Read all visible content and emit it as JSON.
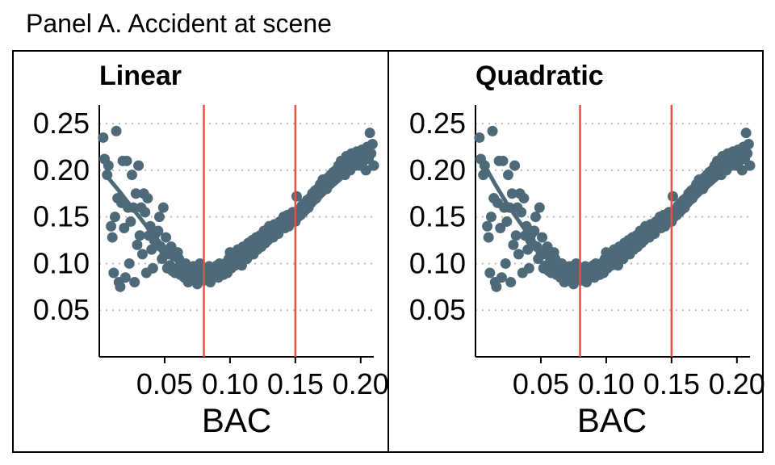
{
  "title": "Panel A. Accident at scene",
  "colors": {
    "points": "#4e6a78",
    "fit_line": "#4e6a78",
    "cutoff_line": "#e8503f",
    "grid": "#bbbbbb"
  },
  "chart_data": [
    {
      "type": "scatter",
      "facet_title": "Linear",
      "fit": "linear",
      "xlabel": "BAC",
      "ylabel": "",
      "xlim": [
        0,
        0.21
      ],
      "ylim": [
        0,
        0.27
      ],
      "x_ticks": [
        "0.05",
        "0.10",
        "0.15",
        "0.20"
      ],
      "y_ticks": [
        "0.05",
        "0.10",
        "0.15",
        "0.20",
        "0.25"
      ],
      "grid": "horizontal dotted",
      "cutoffs": [
        0.08,
        0.15
      ],
      "points": [
        [
          0.003,
          0.235
        ],
        [
          0.004,
          0.212
        ],
        [
          0.006,
          0.195
        ],
        [
          0.007,
          0.205
        ],
        [
          0.009,
          0.14
        ],
        [
          0.01,
          0.128
        ],
        [
          0.011,
          0.09
        ],
        [
          0.012,
          0.15
        ],
        [
          0.013,
          0.242
        ],
        [
          0.014,
          0.17
        ],
        [
          0.015,
          0.08
        ],
        [
          0.016,
          0.075
        ],
        [
          0.017,
          0.165
        ],
        [
          0.018,
          0.21
        ],
        [
          0.019,
          0.138
        ],
        [
          0.02,
          0.085
        ],
        [
          0.021,
          0.21
        ],
        [
          0.022,
          0.16
        ],
        [
          0.023,
          0.1
        ],
        [
          0.024,
          0.145
        ],
        [
          0.025,
          0.195
        ],
        [
          0.026,
          0.16
        ],
        [
          0.027,
          0.08
        ],
        [
          0.028,
          0.175
        ],
        [
          0.029,
          0.12
        ],
        [
          0.03,
          0.205
        ],
        [
          0.031,
          0.13
        ],
        [
          0.032,
          0.16
        ],
        [
          0.033,
          0.11
        ],
        [
          0.034,
          0.175
        ],
        [
          0.035,
          0.155
        ],
        [
          0.036,
          0.09
        ],
        [
          0.037,
          0.17
        ],
        [
          0.038,
          0.13
        ],
        [
          0.039,
          0.14
        ],
        [
          0.04,
          0.115
        ],
        [
          0.041,
          0.095
        ],
        [
          0.042,
          0.125
        ],
        [
          0.043,
          0.132
        ],
        [
          0.044,
          0.12
        ],
        [
          0.045,
          0.135
        ],
        [
          0.046,
          0.15
        ],
        [
          0.047,
          0.118
        ],
        [
          0.048,
          0.105
        ],
        [
          0.049,
          0.16
        ],
        [
          0.05,
          0.112
        ],
        [
          0.051,
          0.128
        ],
        [
          0.052,
          0.095
        ],
        [
          0.053,
          0.11
        ],
        [
          0.054,
          0.098
        ],
        [
          0.055,
          0.118
        ],
        [
          0.056,
          0.092
        ],
        [
          0.057,
          0.108
        ],
        [
          0.058,
          0.09
        ],
        [
          0.059,
          0.095
        ],
        [
          0.06,
          0.112
        ],
        [
          0.061,
          0.105
        ],
        [
          0.062,
          0.088
        ],
        [
          0.063,
          0.098
        ],
        [
          0.064,
          0.094
        ],
        [
          0.065,
          0.085
        ],
        [
          0.066,
          0.1
        ],
        [
          0.067,
          0.09
        ],
        [
          0.068,
          0.08
        ],
        [
          0.069,
          0.095
        ],
        [
          0.07,
          0.088
        ],
        [
          0.071,
          0.082
        ],
        [
          0.072,
          0.097
        ],
        [
          0.073,
          0.086
        ],
        [
          0.074,
          0.092
        ],
        [
          0.075,
          0.078
        ],
        [
          0.076,
          0.09
        ],
        [
          0.077,
          0.1
        ],
        [
          0.078,
          0.085
        ],
        [
          0.079,
          0.088
        ],
        [
          0.08,
          0.095
        ],
        [
          0.081,
          0.082
        ],
        [
          0.082,
          0.092
        ],
        [
          0.083,
          0.088
        ],
        [
          0.084,
          0.097
        ],
        [
          0.085,
          0.08
        ],
        [
          0.086,
          0.092
        ],
        [
          0.087,
          0.086
        ],
        [
          0.088,
          0.094
        ],
        [
          0.089,
          0.09
        ],
        [
          0.09,
          0.098
        ],
        [
          0.091,
          0.085
        ],
        [
          0.092,
          0.1
        ],
        [
          0.093,
          0.092
        ],
        [
          0.094,
          0.096
        ],
        [
          0.095,
          0.088
        ],
        [
          0.096,
          0.1
        ],
        [
          0.097,
          0.094
        ],
        [
          0.098,
          0.09
        ],
        [
          0.099,
          0.105
        ],
        [
          0.1,
          0.112
        ],
        [
          0.101,
          0.095
        ],
        [
          0.102,
          0.1
        ],
        [
          0.103,
          0.108
        ],
        [
          0.104,
          0.098
        ],
        [
          0.105,
          0.104
        ],
        [
          0.106,
          0.115
        ],
        [
          0.107,
          0.1
        ],
        [
          0.108,
          0.11
        ],
        [
          0.109,
          0.098
        ],
        [
          0.11,
          0.118
        ],
        [
          0.111,
          0.108
        ],
        [
          0.112,
          0.115
        ],
        [
          0.113,
          0.105
        ],
        [
          0.114,
          0.122
        ],
        [
          0.115,
          0.11
        ],
        [
          0.116,
          0.118
        ],
        [
          0.117,
          0.125
        ],
        [
          0.118,
          0.11
        ],
        [
          0.119,
          0.12
        ],
        [
          0.12,
          0.128
        ],
        [
          0.121,
          0.115
        ],
        [
          0.122,
          0.122
        ],
        [
          0.123,
          0.13
        ],
        [
          0.124,
          0.118
        ],
        [
          0.125,
          0.128
        ],
        [
          0.126,
          0.135
        ],
        [
          0.127,
          0.122
        ],
        [
          0.128,
          0.132
        ],
        [
          0.129,
          0.125
        ],
        [
          0.13,
          0.14
        ],
        [
          0.131,
          0.13
        ],
        [
          0.132,
          0.136
        ],
        [
          0.133,
          0.128
        ],
        [
          0.134,
          0.142
        ],
        [
          0.135,
          0.135
        ],
        [
          0.136,
          0.14
        ],
        [
          0.137,
          0.132
        ],
        [
          0.138,
          0.145
        ],
        [
          0.139,
          0.138
        ],
        [
          0.14,
          0.142
        ],
        [
          0.141,
          0.15
        ],
        [
          0.142,
          0.138
        ],
        [
          0.143,
          0.145
        ],
        [
          0.144,
          0.152
        ],
        [
          0.145,
          0.14
        ],
        [
          0.146,
          0.148
        ],
        [
          0.147,
          0.145
        ],
        [
          0.148,
          0.155
        ],
        [
          0.149,
          0.15
        ],
        [
          0.15,
          0.145
        ],
        [
          0.151,
          0.172
        ],
        [
          0.152,
          0.15
        ],
        [
          0.153,
          0.158
        ],
        [
          0.154,
          0.152
        ],
        [
          0.155,
          0.162
        ],
        [
          0.156,
          0.155
        ],
        [
          0.157,
          0.165
        ],
        [
          0.158,
          0.158
        ],
        [
          0.159,
          0.168
        ],
        [
          0.16,
          0.16
        ],
        [
          0.161,
          0.17
        ],
        [
          0.162,
          0.165
        ],
        [
          0.163,
          0.175
        ],
        [
          0.164,
          0.168
        ],
        [
          0.165,
          0.178
        ],
        [
          0.166,
          0.17
        ],
        [
          0.167,
          0.18
        ],
        [
          0.168,
          0.175
        ],
        [
          0.169,
          0.185
        ],
        [
          0.17,
          0.178
        ],
        [
          0.171,
          0.19
        ],
        [
          0.172,
          0.182
        ],
        [
          0.173,
          0.188
        ],
        [
          0.174,
          0.18
        ],
        [
          0.175,
          0.192
        ],
        [
          0.176,
          0.185
        ],
        [
          0.177,
          0.195
        ],
        [
          0.178,
          0.188
        ],
        [
          0.179,
          0.198
        ],
        [
          0.18,
          0.19
        ],
        [
          0.181,
          0.2
        ],
        [
          0.182,
          0.192
        ],
        [
          0.183,
          0.205
        ],
        [
          0.184,
          0.198
        ],
        [
          0.185,
          0.21
        ],
        [
          0.186,
          0.2
        ],
        [
          0.187,
          0.208
        ],
        [
          0.188,
          0.195
        ],
        [
          0.189,
          0.215
        ],
        [
          0.19,
          0.205
        ],
        [
          0.191,
          0.212
        ],
        [
          0.192,
          0.2
        ],
        [
          0.193,
          0.218
        ],
        [
          0.194,
          0.208
        ],
        [
          0.195,
          0.215
        ],
        [
          0.196,
          0.205
        ],
        [
          0.197,
          0.22
        ],
        [
          0.198,
          0.21
        ],
        [
          0.199,
          0.218
        ],
        [
          0.2,
          0.205
        ],
        [
          0.201,
          0.222
        ],
        [
          0.202,
          0.21
        ],
        [
          0.203,
          0.215
        ],
        [
          0.204,
          0.2
        ],
        [
          0.205,
          0.225
        ],
        [
          0.206,
          0.212
        ],
        [
          0.207,
          0.24
        ],
        [
          0.208,
          0.218
        ],
        [
          0.209,
          0.228
        ],
        [
          0.21,
          0.205
        ]
      ],
      "fit_points": [
        [
          0.005,
          0.195
        ],
        [
          0.015,
          0.178
        ],
        [
          0.025,
          0.16
        ],
        [
          0.035,
          0.142
        ],
        [
          0.045,
          0.125
        ],
        [
          0.055,
          0.108
        ],
        [
          0.065,
          0.095
        ],
        [
          0.075,
          0.088
        ],
        [
          0.08,
          0.087
        ],
        [
          0.09,
          0.092
        ],
        [
          0.1,
          0.1
        ],
        [
          0.11,
          0.108
        ],
        [
          0.12,
          0.118
        ],
        [
          0.13,
          0.128
        ],
        [
          0.14,
          0.138
        ],
        [
          0.15,
          0.147
        ],
        [
          0.16,
          0.16
        ],
        [
          0.17,
          0.172
        ],
        [
          0.18,
          0.185
        ],
        [
          0.19,
          0.197
        ],
        [
          0.2,
          0.208
        ],
        [
          0.208,
          0.218
        ]
      ]
    },
    {
      "type": "scatter",
      "facet_title": "Quadratic",
      "fit": "quadratic",
      "xlabel": "BAC",
      "ylabel": "",
      "xlim": [
        0,
        0.21
      ],
      "ylim": [
        0,
        0.27
      ],
      "x_ticks": [
        "0.05",
        "0.10",
        "0.15",
        "0.20"
      ],
      "y_ticks": [
        "0.05",
        "0.10",
        "0.15",
        "0.20",
        "0.25"
      ],
      "grid": "horizontal dotted",
      "cutoffs": [
        0.08,
        0.15
      ],
      "points": "same",
      "fit_points": [
        [
          0.005,
          0.21
        ],
        [
          0.015,
          0.185
        ],
        [
          0.025,
          0.162
        ],
        [
          0.035,
          0.142
        ],
        [
          0.045,
          0.122
        ],
        [
          0.055,
          0.105
        ],
        [
          0.065,
          0.093
        ],
        [
          0.075,
          0.088
        ],
        [
          0.08,
          0.088
        ],
        [
          0.09,
          0.093
        ],
        [
          0.1,
          0.1
        ],
        [
          0.11,
          0.107
        ],
        [
          0.12,
          0.117
        ],
        [
          0.13,
          0.127
        ],
        [
          0.14,
          0.137
        ],
        [
          0.15,
          0.145
        ],
        [
          0.16,
          0.16
        ],
        [
          0.17,
          0.172
        ],
        [
          0.18,
          0.185
        ],
        [
          0.19,
          0.197
        ],
        [
          0.2,
          0.207
        ],
        [
          0.208,
          0.215
        ]
      ]
    }
  ]
}
